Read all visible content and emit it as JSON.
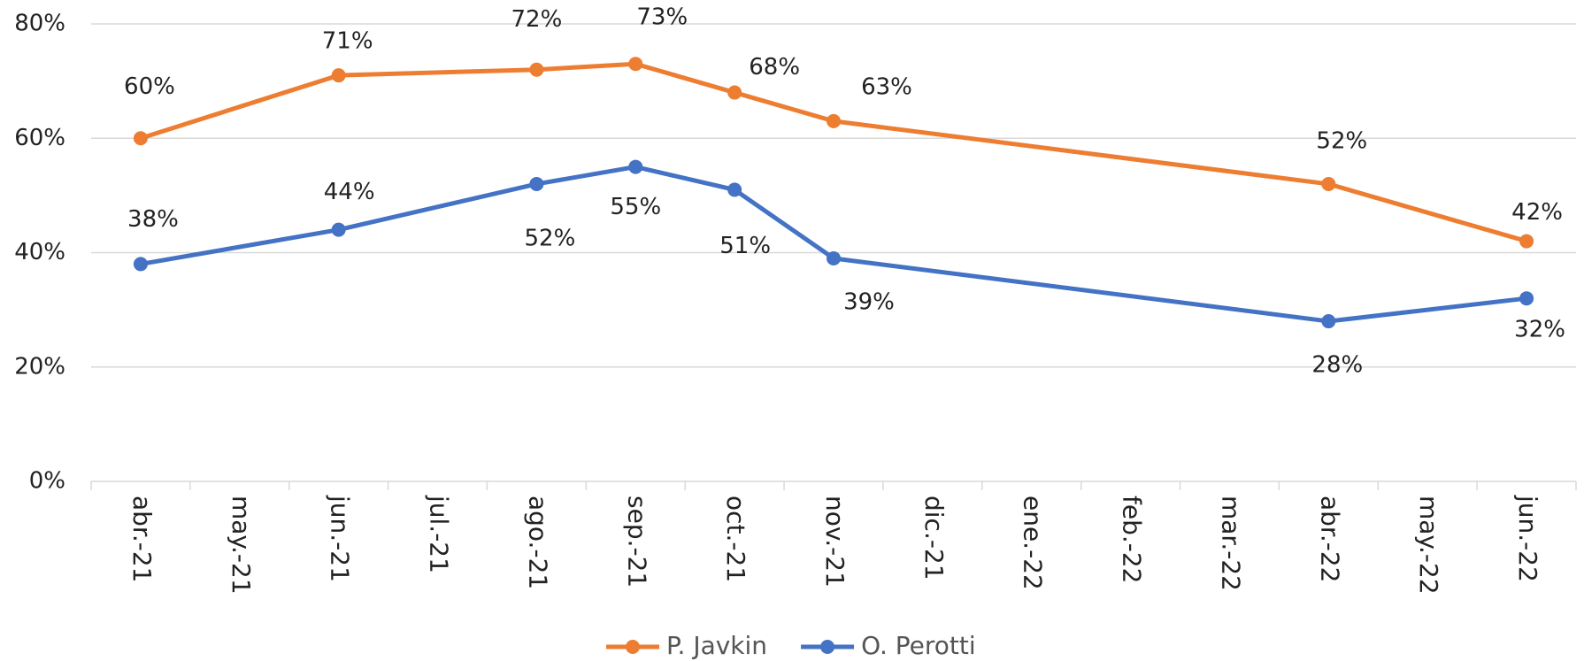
{
  "chart_data": {
    "type": "line",
    "categories": [
      "abr.-21",
      "may.-21",
      "jun.-21",
      "jul.-21",
      "ago.-21",
      "sep.-21",
      "oct.-21",
      "nov.-21",
      "dic.-21",
      "ene.-22",
      "feb.-22",
      "mar.-22",
      "abr.-22",
      "may.-22",
      "jun.-22"
    ],
    "series": [
      {
        "name": "P. Javkin",
        "color": "#ed7d31",
        "values": [
          60,
          null,
          71,
          null,
          72,
          73,
          68,
          63,
          null,
          null,
          null,
          null,
          52,
          null,
          42
        ],
        "value_labels": [
          "60%",
          null,
          "71%",
          null,
          "72%",
          "73%",
          "68%",
          "63%",
          null,
          null,
          null,
          null,
          "52%",
          null,
          "42%"
        ]
      },
      {
        "name": "O. Perotti",
        "color": "#4472c4",
        "values": [
          38,
          null,
          44,
          null,
          52,
          55,
          51,
          39,
          null,
          null,
          null,
          null,
          28,
          null,
          32
        ],
        "value_labels": [
          "38%",
          null,
          "44%",
          null,
          "52%",
          "55%",
          "51%",
          "39%",
          null,
          null,
          null,
          null,
          "28%",
          null,
          "32%"
        ]
      }
    ],
    "ylim": [
      0,
      80
    ],
    "yticks": [
      {
        "value": 0,
        "label": "0%"
      },
      {
        "value": 20,
        "label": "20%"
      },
      {
        "value": 40,
        "label": "40%"
      },
      {
        "value": 60,
        "label": "60%"
      },
      {
        "value": 80,
        "label": "80%"
      }
    ],
    "grid": true,
    "legend": "bottom"
  }
}
